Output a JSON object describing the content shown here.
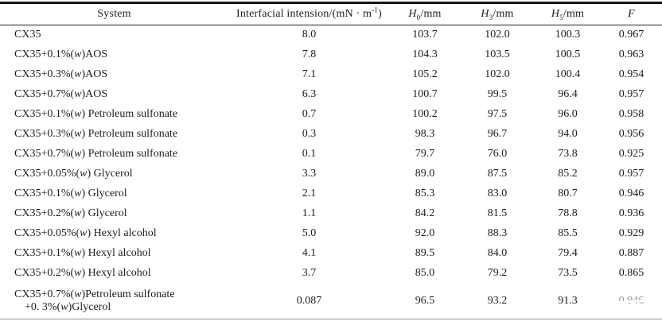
{
  "table": {
    "columns": {
      "system": {
        "label": "System"
      },
      "tension": {
        "prefix": "Interfacial intension/(mN · m",
        "sup": "-1",
        "suffix": ")"
      },
      "h0": {
        "symbol": "H",
        "sub": "0",
        "unit": "/mm"
      },
      "h3": {
        "symbol": "H",
        "sub": "3",
        "unit": "/mm"
      },
      "h5": {
        "symbol": "H",
        "sub": "5",
        "unit": "/mm"
      },
      "f": {
        "label": "F"
      }
    },
    "rows": [
      {
        "system": [
          "CX35"
        ],
        "tension": "8.0",
        "h0": "103.7",
        "h3": "102.0",
        "h5": "100.3",
        "f": "0.967"
      },
      {
        "system": [
          "CX35+0.1%(w)AOS"
        ],
        "tension": "7.8",
        "h0": "104.3",
        "h3": "103.5",
        "h5": "100.5",
        "f": "0.963"
      },
      {
        "system": [
          "CX35+0.3%(w)AOS"
        ],
        "tension": "7.1",
        "h0": "105.2",
        "h3": "102.0",
        "h5": "100.4",
        "f": "0.954"
      },
      {
        "system": [
          "CX35+0.7%(w)AOS"
        ],
        "tension": "6.3",
        "h0": "100.7",
        "h3": "99.5",
        "h5": "96.4",
        "f": "0.957"
      },
      {
        "system": [
          "CX35+0.1%(w) Petroleum sulfonate"
        ],
        "tension": "0.7",
        "h0": "100.2",
        "h3": "97.5",
        "h5": "96.0",
        "f": "0.958"
      },
      {
        "system": [
          "CX35+0.3%(w) Petroleum sulfonate"
        ],
        "tension": "0.3",
        "h0": "98.3",
        "h3": "96.7",
        "h5": "94.0",
        "f": "0.956"
      },
      {
        "system": [
          "CX35+0.7%(w) Petroleum sulfonate"
        ],
        "tension": "0.1",
        "h0": "79.7",
        "h3": "76.0",
        "h5": "73.8",
        "f": "0.925"
      },
      {
        "system": [
          "CX35+0.05%(w) Glycerol"
        ],
        "tension": "3.3",
        "h0": "89.0",
        "h3": "87.5",
        "h5": "85.2",
        "f": "0.957"
      },
      {
        "system": [
          "CX35+0.1%(w) Glycerol"
        ],
        "tension": "2.1",
        "h0": "85.3",
        "h3": "83.0",
        "h5": "80.7",
        "f": "0.946"
      },
      {
        "system": [
          "CX35+0.2%(w) Glycerol"
        ],
        "tension": "1.1",
        "h0": "84.2",
        "h3": "81.5",
        "h5": "78.8",
        "f": "0.936"
      },
      {
        "system": [
          "CX35+0.05%(w) Hexyl alcohol"
        ],
        "tension": "5.0",
        "h0": "92.0",
        "h3": "88.3",
        "h5": "85.5",
        "f": "0.929"
      },
      {
        "system": [
          "CX35+0.1%(w) Hexyl alcohol"
        ],
        "tension": "4.1",
        "h0": "89.5",
        "h3": "84.0",
        "h5": "79.4",
        "f": "0.887"
      },
      {
        "system": [
          "CX35+0.2%(w) Hexyl alcohol"
        ],
        "tension": "3.7",
        "h0": "85.0",
        "h3": "79.2",
        "h5": "73.5",
        "f": "0.865"
      },
      {
        "system": [
          "CX35+0.7%(w)Petroleum sulfonate",
          "+0. 3%(w)Glycerol"
        ],
        "tension": "0.087",
        "h0": "96.5",
        "h3": "93.2",
        "h5": "91.3",
        "f": "0.946",
        "degraded": true
      }
    ]
  }
}
